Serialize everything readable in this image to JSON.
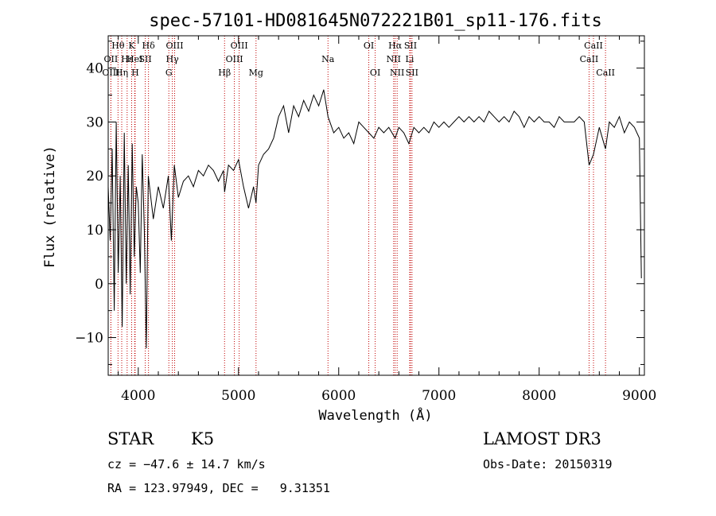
{
  "chart_data": {
    "type": "line",
    "title": "spec-57101-HD081645N072221B01_sp11-176.fits",
    "xlabel": "Wavelength (Å)",
    "ylabel": "Flux (relative)",
    "xlim": [
      3700,
      9050
    ],
    "ylim": [
      -17,
      46
    ],
    "xticks": [
      4000,
      5000,
      6000,
      7000,
      8000,
      9000
    ],
    "yticks": [
      -10,
      0,
      10,
      20,
      30,
      40
    ],
    "grid": false,
    "series": [
      {
        "x": [
          3700,
          3720,
          3740,
          3760,
          3780,
          3800,
          3820,
          3840,
          3860,
          3880,
          3900,
          3920,
          3940,
          3960,
          3980,
          4000,
          4020,
          4040,
          4060,
          4080,
          4100,
          4150,
          4200,
          4250,
          4300,
          4330,
          4360,
          4400,
          4450,
          4500,
          4550,
          4600,
          4650,
          4700,
          4750,
          4800,
          4850,
          4861,
          4900,
          4950,
          5000,
          5050,
          5100,
          5150,
          5175,
          5200,
          5250,
          5300,
          5350,
          5400,
          5450,
          5500,
          5550,
          5600,
          5650,
          5700,
          5750,
          5800,
          5850,
          5893,
          5950,
          6000,
          6050,
          6100,
          6150,
          6200,
          6250,
          6300,
          6350,
          6400,
          6450,
          6500,
          6563,
          6600,
          6650,
          6700,
          6750,
          6800,
          6850,
          6900,
          6950,
          7000,
          7050,
          7100,
          7150,
          7200,
          7250,
          7300,
          7350,
          7400,
          7450,
          7500,
          7550,
          7600,
          7650,
          7700,
          7750,
          7800,
          7850,
          7900,
          7950,
          8000,
          8050,
          8100,
          8150,
          8200,
          8250,
          8300,
          8350,
          8400,
          8450,
          8498,
          8542,
          8600,
          8662,
          8700,
          8750,
          8800,
          8850,
          8900,
          8950,
          9000,
          9020
        ],
        "y": [
          18,
          8,
          25,
          -5,
          30,
          2,
          20,
          -8,
          28,
          0,
          22,
          -2,
          26,
          5,
          18,
          15,
          2,
          24,
          10,
          -12,
          20,
          12,
          18,
          14,
          20,
          8,
          22,
          16,
          19,
          20,
          18,
          21,
          20,
          22,
          21,
          19,
          21,
          17,
          22,
          21,
          23,
          18,
          14,
          18,
          15,
          22,
          24,
          25,
          27,
          31,
          33,
          28,
          33,
          31,
          34,
          32,
          35,
          33,
          36,
          31,
          28,
          29,
          27,
          28,
          26,
          30,
          29,
          28,
          27,
          29,
          28,
          29,
          27,
          29,
          28,
          26,
          29,
          28,
          29,
          28,
          30,
          29,
          30,
          29,
          30,
          31,
          30,
          31,
          30,
          31,
          30,
          32,
          31,
          30,
          31,
          30,
          32,
          31,
          29,
          31,
          30,
          31,
          30,
          30,
          29,
          31,
          30,
          30,
          30,
          31,
          30,
          22,
          24,
          29,
          25,
          30,
          29,
          31,
          28,
          30,
          29,
          27,
          1
        ]
      }
    ],
    "lines": [
      {
        "label": "OII",
        "wave": 3727,
        "row": 1
      },
      {
        "label": "OIII",
        "wave": 3727,
        "row": 2
      },
      {
        "label": "Hθ",
        "wave": 3798,
        "row": 0
      },
      {
        "label": "Hη",
        "wave": 3835,
        "row": 2
      },
      {
        "label": "Hε",
        "wave": 3889,
        "row": 1
      },
      {
        "label": "K",
        "wave": 3934,
        "row": 0
      },
      {
        "label": "HeI",
        "wave": 3964,
        "row": 1
      },
      {
        "label": "H",
        "wave": 3969,
        "row": 2
      },
      {
        "label": "SII",
        "wave": 4070,
        "row": 1
      },
      {
        "label": "Hδ",
        "wave": 4102,
        "row": 0
      },
      {
        "label": "OIII",
        "wave": 4363,
        "row": 0
      },
      {
        "label": "Hγ",
        "wave": 4340,
        "row": 1
      },
      {
        "label": "G",
        "wave": 4305,
        "row": 2
      },
      {
        "label": "Hβ",
        "wave": 4861,
        "row": 2
      },
      {
        "label": "OIII",
        "wave": 5007,
        "row": 0
      },
      {
        "label": "OIII",
        "wave": 4959,
        "row": 1
      },
      {
        "label": "Mg",
        "wave": 5175,
        "row": 2
      },
      {
        "label": "Na",
        "wave": 5893,
        "row": 1
      },
      {
        "label": "OI",
        "wave": 6300,
        "row": 0
      },
      {
        "label": "OI",
        "wave": 6364,
        "row": 2
      },
      {
        "label": "Hα",
        "wave": 6563,
        "row": 0
      },
      {
        "label": "NII",
        "wave": 6548,
        "row": 1
      },
      {
        "label": "NII",
        "wave": 6583,
        "row": 2
      },
      {
        "label": "SII",
        "wave": 6716,
        "row": 0
      },
      {
        "label": "Li",
        "wave": 6708,
        "row": 1
      },
      {
        "label": "SII",
        "wave": 6731,
        "row": 2
      },
      {
        "label": "CaII",
        "wave": 8542,
        "row": 0
      },
      {
        "label": "CaII",
        "wave": 8498,
        "row": 1
      },
      {
        "label": "CaII",
        "wave": 8662,
        "row": 2
      }
    ]
  },
  "info": {
    "class": "STAR",
    "subclass": "K5",
    "survey": "LAMOST DR3",
    "cz": "cz = −47.6 ± 14.7 km/s",
    "obs_date": "Obs-Date: 20150319",
    "radec": "RA = 123.97949, DEC =   9.31351"
  },
  "colors": {
    "spectrum": "#000000",
    "line_marker": "#c00000"
  }
}
